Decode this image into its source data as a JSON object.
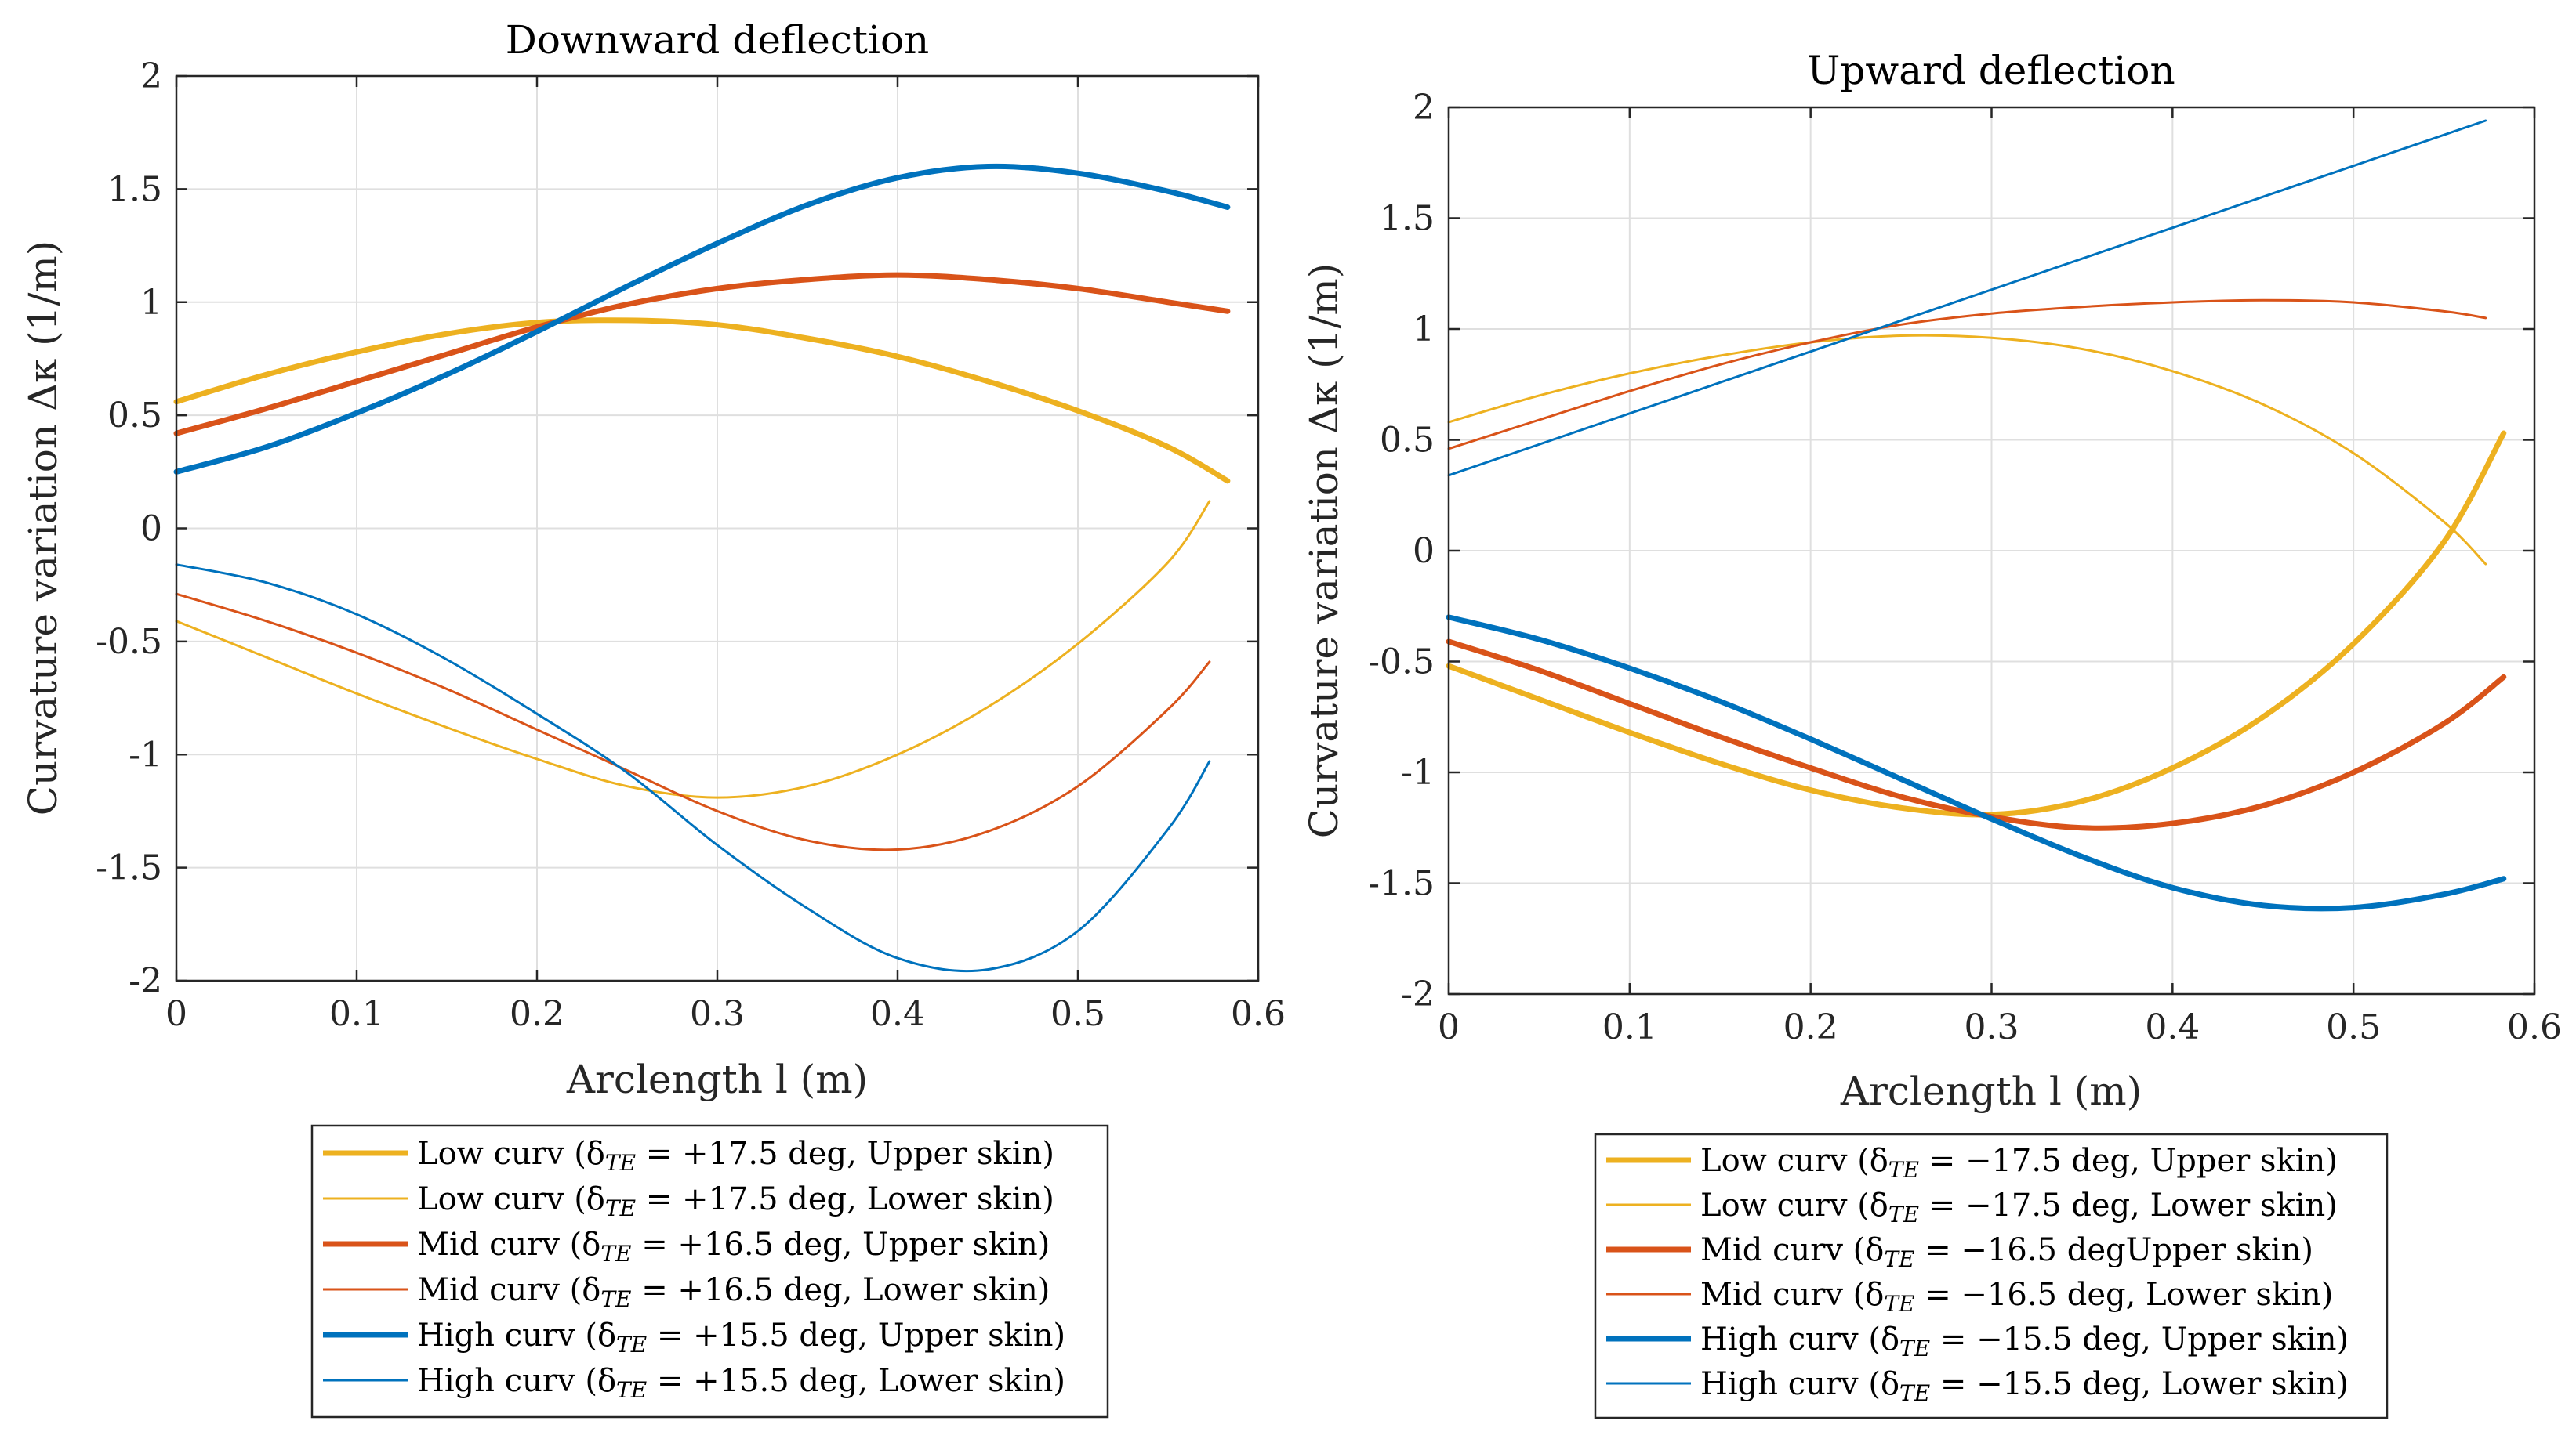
{
  "chart_data": [
    {
      "type": "line",
      "title": "Downward deflection",
      "xlabel": "Arclength l (m)",
      "ylabel": "Curvature variation Δκ (1/m)",
      "xlim": [
        0,
        0.6
      ],
      "ylim": [
        -2,
        2
      ],
      "x_ticks": [
        0,
        0.1,
        0.2,
        0.3,
        0.4,
        0.5,
        0.6
      ],
      "y_ticks": [
        -2,
        -1.5,
        -1,
        -0.5,
        0,
        0.5,
        1,
        1.5,
        2
      ],
      "x_tick_labels": [
        "0",
        "0.1",
        "0.2",
        "0.3",
        "0.4",
        "0.5",
        "0.6"
      ],
      "y_tick_labels": [
        "-2",
        "-1.5",
        "-1",
        "-0.5",
        "0",
        "0.5",
        "1",
        "1.5",
        "2"
      ],
      "grid": true,
      "legend_position": "below",
      "series": [
        {
          "name": "Low curv (δTE = +17.5 deg, Upper skin)",
          "legend_label": "Low curv (δ",
          "legend_sub": "TE",
          "legend_rest": " = +17.5 deg, Upper skin)",
          "color": "#EDB120",
          "weight": "thick",
          "x": [
            0,
            0.05,
            0.1,
            0.15,
            0.2,
            0.25,
            0.3,
            0.35,
            0.4,
            0.45,
            0.5,
            0.55,
            0.583
          ],
          "values": [
            0.56,
            0.68,
            0.78,
            0.86,
            0.91,
            0.92,
            0.9,
            0.84,
            0.76,
            0.65,
            0.52,
            0.36,
            0.21
          ]
        },
        {
          "name": "Low curv (δTE = +17.5 deg, Lower skin)",
          "legend_label": "Low curv (δ",
          "legend_sub": "TE",
          "legend_rest": " = +17.5 deg, Lower skin)",
          "color": "#EDB120",
          "weight": "thin",
          "x": [
            0,
            0.05,
            0.1,
            0.15,
            0.2,
            0.25,
            0.3,
            0.35,
            0.4,
            0.45,
            0.5,
            0.55,
            0.573
          ],
          "values": [
            -0.41,
            -0.57,
            -0.73,
            -0.88,
            -1.02,
            -1.14,
            -1.19,
            -1.14,
            -1.0,
            -0.79,
            -0.51,
            -0.15,
            0.12
          ]
        },
        {
          "name": "Mid curv (δTE = +16.5 deg, Upper skin)",
          "legend_label": "Mid curv (δ",
          "legend_sub": "TE",
          "legend_rest": " = +16.5 deg, Upper skin)",
          "color": "#D95319",
          "weight": "thick",
          "x": [
            0,
            0.05,
            0.1,
            0.15,
            0.2,
            0.25,
            0.3,
            0.35,
            0.4,
            0.45,
            0.5,
            0.55,
            0.583
          ],
          "values": [
            0.42,
            0.53,
            0.65,
            0.77,
            0.89,
            0.99,
            1.06,
            1.1,
            1.12,
            1.1,
            1.06,
            1.0,
            0.96
          ]
        },
        {
          "name": "Mid curv (δTE = +16.5 deg, Lower skin)",
          "legend_label": "Mid curv (δ",
          "legend_sub": "TE",
          "legend_rest": " = +16.5 deg, Lower skin)",
          "color": "#D95319",
          "weight": "thin",
          "x": [
            0,
            0.05,
            0.1,
            0.15,
            0.2,
            0.25,
            0.3,
            0.35,
            0.4,
            0.45,
            0.5,
            0.55,
            0.573
          ],
          "values": [
            -0.29,
            -0.41,
            -0.55,
            -0.71,
            -0.89,
            -1.07,
            -1.25,
            -1.38,
            -1.42,
            -1.34,
            -1.14,
            -0.8,
            -0.59
          ]
        },
        {
          "name": "High curv (δTE = +15.5 deg, Upper skin)",
          "legend_label": "High curv (δ",
          "legend_sub": "TE",
          "legend_rest": " = +15.5 deg, Upper skin)",
          "color": "#0072BD",
          "weight": "thick",
          "x": [
            0,
            0.05,
            0.1,
            0.15,
            0.2,
            0.25,
            0.3,
            0.35,
            0.4,
            0.45,
            0.5,
            0.55,
            0.583
          ],
          "values": [
            0.25,
            0.36,
            0.51,
            0.68,
            0.87,
            1.07,
            1.26,
            1.43,
            1.55,
            1.6,
            1.57,
            1.49,
            1.42
          ]
        },
        {
          "name": "High curv (δTE = +15.5 deg, Lower skin)",
          "legend_label": "High curv (δ",
          "legend_sub": "TE",
          "legend_rest": " = +15.5 deg, Lower skin)",
          "color": "#0072BD",
          "weight": "thin",
          "x": [
            0,
            0.05,
            0.1,
            0.15,
            0.2,
            0.25,
            0.3,
            0.35,
            0.4,
            0.45,
            0.5,
            0.55,
            0.573
          ],
          "values": [
            -0.16,
            -0.24,
            -0.38,
            -0.58,
            -0.82,
            -1.08,
            -1.4,
            -1.68,
            -1.9,
            -1.95,
            -1.78,
            -1.33,
            -1.03
          ]
        }
      ]
    },
    {
      "type": "line",
      "title": "Upward deflection",
      "xlabel": "Arclength l (m)",
      "ylabel": "Curvature variation Δκ (1/m)",
      "xlim": [
        0,
        0.6
      ],
      "ylim": [
        -2,
        2
      ],
      "x_ticks": [
        0,
        0.1,
        0.2,
        0.3,
        0.4,
        0.5,
        0.6
      ],
      "y_ticks": [
        -2,
        -1.5,
        -1,
        -0.5,
        0,
        0.5,
        1,
        1.5,
        2
      ],
      "x_tick_labels": [
        "0",
        "0.1",
        "0.2",
        "0.3",
        "0.4",
        "0.5",
        "0.6"
      ],
      "y_tick_labels": [
        "-2",
        "-1.5",
        "-1",
        "-0.5",
        "0",
        "0.5",
        "1",
        "1.5",
        "2"
      ],
      "grid": true,
      "legend_position": "below",
      "series": [
        {
          "name": "Low curv (δTE = −17.5 deg, Upper skin)",
          "legend_label": "Low curv (δ",
          "legend_sub": "TE",
          "legend_rest": " = −17.5 deg, Upper skin)",
          "color": "#EDB120",
          "weight": "thick",
          "x": [
            0,
            0.05,
            0.1,
            0.15,
            0.2,
            0.25,
            0.3,
            0.35,
            0.4,
            0.45,
            0.5,
            0.55,
            0.583
          ],
          "values": [
            -0.52,
            -0.67,
            -0.82,
            -0.96,
            -1.08,
            -1.16,
            -1.19,
            -1.13,
            -0.98,
            -0.75,
            -0.42,
            0.04,
            0.53
          ]
        },
        {
          "name": "Low curv (δTE = −17.5 deg, Lower skin)",
          "legend_label": "Low curv (δ",
          "legend_sub": "TE",
          "legend_rest": " = −17.5 deg, Lower skin)",
          "color": "#EDB120",
          "weight": "thin",
          "x": [
            0,
            0.05,
            0.1,
            0.15,
            0.2,
            0.25,
            0.3,
            0.35,
            0.4,
            0.45,
            0.5,
            0.55,
            0.573
          ],
          "values": [
            0.58,
            0.7,
            0.8,
            0.88,
            0.94,
            0.97,
            0.96,
            0.91,
            0.81,
            0.66,
            0.44,
            0.13,
            -0.06
          ]
        },
        {
          "name": "Mid curv (δTE = −16.5 degUpper skin)",
          "legend_label": "Mid curv (δ",
          "legend_sub": "TE",
          "legend_rest": " = −16.5 degUpper skin)",
          "color": "#D95319",
          "weight": "thick",
          "x": [
            0,
            0.05,
            0.1,
            0.15,
            0.2,
            0.25,
            0.3,
            0.35,
            0.4,
            0.45,
            0.5,
            0.55,
            0.583
          ],
          "values": [
            -0.41,
            -0.54,
            -0.69,
            -0.84,
            -0.98,
            -1.11,
            -1.2,
            -1.25,
            -1.23,
            -1.15,
            -1.0,
            -0.78,
            -0.57
          ]
        },
        {
          "name": "Mid curv (δTE = −16.5 deg, Lower skin)",
          "legend_label": "Mid curv (δ",
          "legend_sub": "TE",
          "legend_rest": " = −16.5 deg, Lower skin)",
          "color": "#D95319",
          "weight": "thin",
          "x": [
            0,
            0.05,
            0.1,
            0.15,
            0.2,
            0.25,
            0.3,
            0.35,
            0.4,
            0.45,
            0.5,
            0.55,
            0.573
          ],
          "values": [
            0.46,
            0.59,
            0.72,
            0.84,
            0.94,
            1.02,
            1.07,
            1.1,
            1.12,
            1.13,
            1.12,
            1.08,
            1.05
          ]
        },
        {
          "name": "High curv (δTE = −15.5 deg, Upper skin)",
          "legend_label": "High curv (δ",
          "legend_sub": "TE",
          "legend_rest": " = −15.5 deg, Upper skin)",
          "color": "#0072BD",
          "weight": "thick",
          "x": [
            0,
            0.05,
            0.1,
            0.15,
            0.2,
            0.25,
            0.3,
            0.35,
            0.4,
            0.45,
            0.5,
            0.55,
            0.583
          ],
          "values": [
            -0.3,
            -0.4,
            -0.53,
            -0.68,
            -0.85,
            -1.03,
            -1.21,
            -1.38,
            -1.52,
            -1.6,
            -1.61,
            -1.55,
            -1.48
          ]
        },
        {
          "name": "High curv (δTE = −15.5 deg, Lower skin)",
          "legend_label": "High curv (δ",
          "legend_sub": "TE",
          "legend_rest": " = −15.5 deg, Lower skin)",
          "color": "#0072BD",
          "weight": "thin",
          "x": [
            0,
            0.573
          ],
          "values": [
            0.34,
            1.94
          ]
        }
      ]
    }
  ]
}
